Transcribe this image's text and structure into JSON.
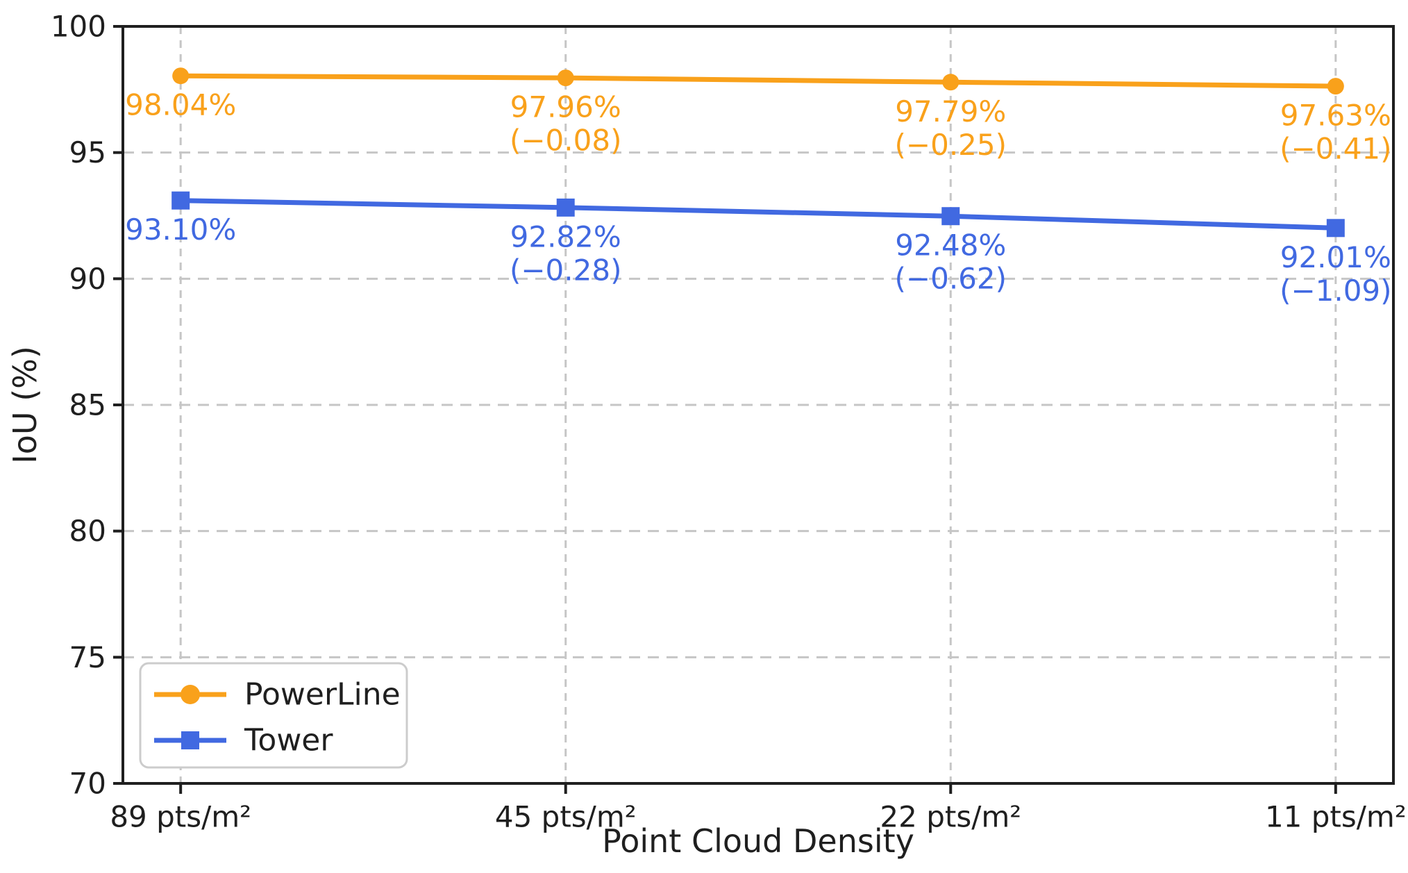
{
  "chart_data": {
    "type": "line",
    "title": "",
    "xlabel": "Point Cloud Density",
    "ylabel": "IoU (%)",
    "categories": [
      "89 pts/m²",
      "45 pts/m²",
      "22 pts/m²",
      "11 pts/m²"
    ],
    "series": [
      {
        "name": "PowerLine",
        "color": "#F9A11B",
        "marker": "circle",
        "values": [
          98.04,
          97.96,
          97.79,
          97.63
        ],
        "point_labels": [
          [
            "98.04%"
          ],
          [
            "97.96%",
            "(−0.08)"
          ],
          [
            "97.79%",
            "(−0.25)"
          ],
          [
            "97.63%",
            "(−0.41)"
          ]
        ]
      },
      {
        "name": "Tower",
        "color": "#4169E1",
        "marker": "square",
        "values": [
          93.1,
          92.82,
          92.48,
          92.01
        ],
        "point_labels": [
          [
            "93.10%"
          ],
          [
            "92.82%",
            "(−0.28)"
          ],
          [
            "92.48%",
            "(−0.62)"
          ],
          [
            "92.01%",
            "(−1.09)"
          ]
        ]
      }
    ],
    "ylim": [
      70,
      100
    ],
    "yticks": [
      70,
      75,
      80,
      85,
      90,
      95,
      100
    ],
    "ytick_labels": [
      "70",
      "75",
      "80",
      "85",
      "90",
      "95",
      "100"
    ],
    "grid": true,
    "grid_style": "dashed",
    "legend": {
      "position": "lower-left",
      "entries": [
        "PowerLine",
        "Tower"
      ]
    }
  },
  "style": {
    "spine_color": "#1f1f1f",
    "grid_color": "#c6c6c6",
    "background": "#ffffff"
  }
}
